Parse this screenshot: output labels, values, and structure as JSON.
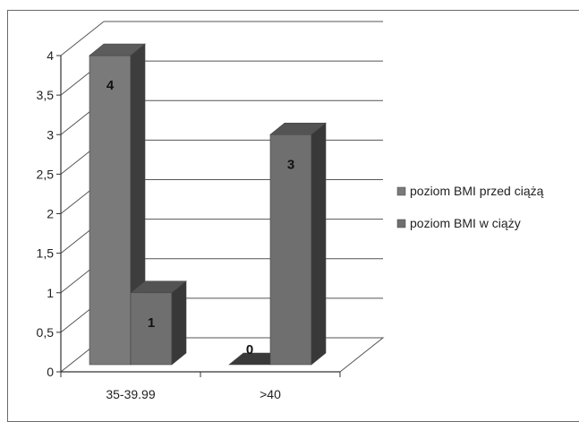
{
  "chart_data": {
    "type": "bar",
    "style": "3d-clustered-column",
    "title": "",
    "xlabel": "",
    "ylabel": "",
    "categories": [
      "35-39.99",
      ">40"
    ],
    "series": [
      {
        "name": "poziom BMI przed ciążą",
        "values": [
          4,
          0
        ],
        "color": "#7a7a7a"
      },
      {
        "name": "poziom BMI w ciąży",
        "values": [
          1,
          3
        ],
        "color": "#6f6f6f"
      }
    ],
    "data_labels": [
      [
        "4",
        "0"
      ],
      [
        "1",
        "3"
      ]
    ],
    "ylim": [
      0,
      4
    ],
    "y_ticks": [
      "0",
      "0,5",
      "1",
      "1,5",
      "2",
      "2,5",
      "3",
      "3,5",
      "4"
    ],
    "grid": true,
    "legend_position": "right"
  }
}
